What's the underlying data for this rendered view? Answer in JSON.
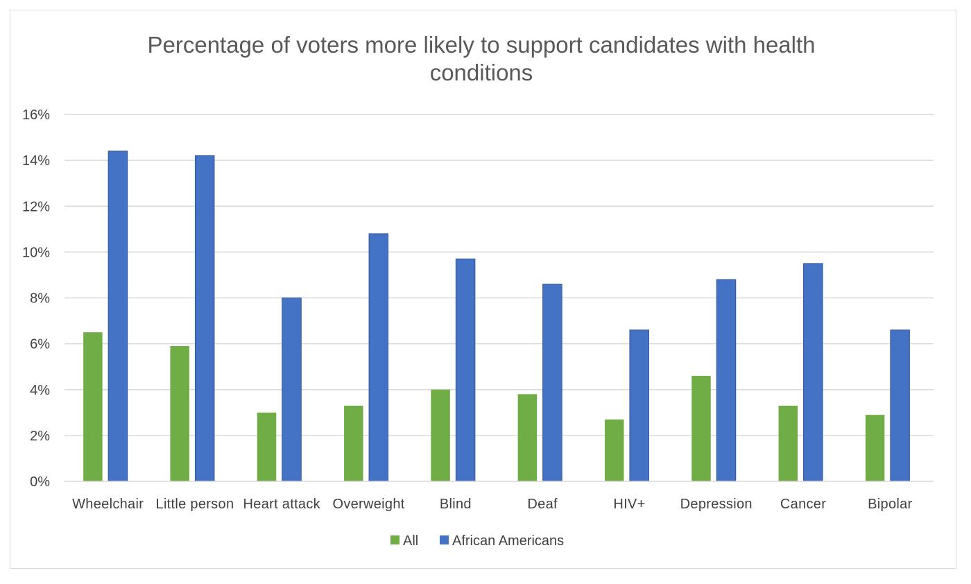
{
  "chart_data": {
    "type": "bar",
    "title_lines": [
      "Percentage of voters more likely to support candidates with health",
      "conditions"
    ],
    "categories": [
      "Wheelchair",
      "Little person",
      "Heart attack",
      "Overweight",
      "Blind",
      "Deaf",
      "HIV+",
      "Depression",
      "Cancer",
      "Bipolar"
    ],
    "series": [
      {
        "name": "All",
        "color": "#70ad47",
        "values": [
          6.5,
          5.9,
          3.0,
          3.3,
          4.0,
          3.8,
          2.7,
          4.6,
          3.3,
          2.9
        ]
      },
      {
        "name": "African Americans",
        "color": "#4472c4",
        "values": [
          14.4,
          14.2,
          8.0,
          10.8,
          9.7,
          8.6,
          6.6,
          8.8,
          9.5,
          6.6
        ]
      }
    ],
    "ylim": [
      0,
      16
    ],
    "yticks": [
      0,
      2,
      4,
      6,
      8,
      10,
      12,
      14,
      16
    ],
    "ytick_labels": [
      "0%",
      "2%",
      "4%",
      "6%",
      "8%",
      "10%",
      "12%",
      "14%",
      "16%"
    ],
    "xlabel": "",
    "ylabel": "",
    "grid": true,
    "legend_position": "bottom",
    "colors": {
      "gridline": "#d9d9d9",
      "axis": "#d9d9d9",
      "bar_border": "#2f5597"
    }
  }
}
